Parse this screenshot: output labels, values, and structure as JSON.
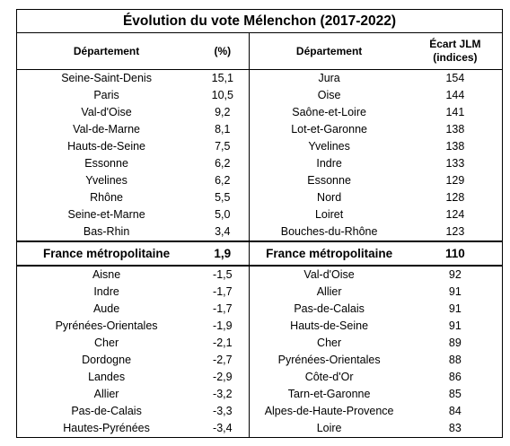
{
  "title": "Évolution du vote Mélenchon (2017-2022)",
  "headers": [
    "Département",
    "(%)",
    "Département",
    "Écart JLM",
    "(indices)"
  ],
  "top_rows": [
    [
      "Seine-Saint-Denis",
      "15,1",
      "Jura",
      "154"
    ],
    [
      "Paris",
      "10,5",
      "Oise",
      "144"
    ],
    [
      "Val-d'Oise",
      "9,2",
      "Saône-et-Loire",
      "141"
    ],
    [
      "Val-de-Marne",
      "8,1",
      "Lot-et-Garonne",
      "138"
    ],
    [
      "Hauts-de-Seine",
      "7,5",
      "Yvelines",
      "138"
    ],
    [
      "Essonne",
      "6,2",
      "Indre",
      "133"
    ],
    [
      "Yvelines",
      "6,2",
      "Essonne",
      "129"
    ],
    [
      "Rhône",
      "5,5",
      "Nord",
      "128"
    ],
    [
      "Seine-et-Marne",
      "5,0",
      "Loiret",
      "124"
    ],
    [
      "Bas-Rhin",
      "3,4",
      "Bouches-du-Rhône",
      "123"
    ]
  ],
  "total_row": [
    "France métropolitaine",
    "1,9",
    "France métropolitaine",
    "110"
  ],
  "bottom_rows": [
    [
      "Aisne",
      "-1,5",
      "Val-d'Oise",
      "92"
    ],
    [
      "Indre",
      "-1,7",
      "Allier",
      "91"
    ],
    [
      "Aude",
      "-1,7",
      "Pas-de-Calais",
      "91"
    ],
    [
      "Pyrénées-Orientales",
      "-1,9",
      "Hauts-de-Seine",
      "91"
    ],
    [
      "Cher",
      "-2,1",
      "Cher",
      "89"
    ],
    [
      "Dordogne",
      "-2,7",
      "Pyrénées-Orientales",
      "88"
    ],
    [
      "Landes",
      "-2,9",
      "Côte-d'Or",
      "86"
    ],
    [
      "Allier",
      "-3,2",
      "Tarn-et-Garonne",
      "85"
    ],
    [
      "Pas-de-Calais",
      "-3,3",
      "Alpes-de-Haute-Provence",
      "84"
    ],
    [
      "Hautes-Pyrénées",
      "-3,4",
      "Loire",
      "83"
    ]
  ]
}
